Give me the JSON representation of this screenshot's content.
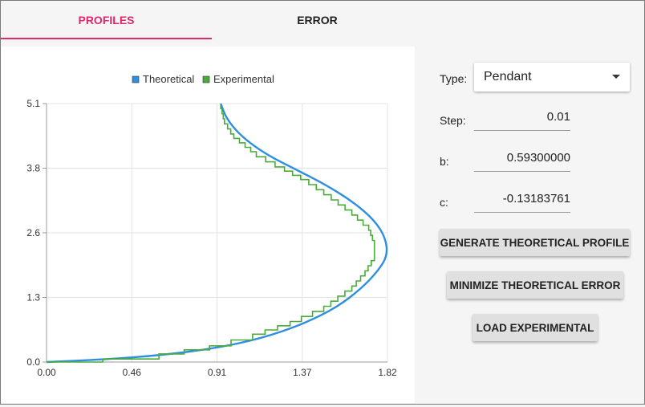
{
  "tabs": [
    {
      "label": "PROFILES",
      "active": true
    },
    {
      "label": "ERROR",
      "active": false
    }
  ],
  "colors": {
    "accent": "#e0276a",
    "theoretical": "#2e8fe0",
    "experimental": "#4aab3a"
  },
  "controls": {
    "type_label": "Type:",
    "type_value": "Pendant",
    "step_label": "Step:",
    "step_value": "0.01",
    "b_label": "b:",
    "b_value": "0.59300000",
    "c_label": "c:",
    "c_value": "-0.13183761",
    "generate_button": "GENERATE THEORETICAL PROFILE",
    "minimize_button": "MINIMIZE THEORETICAL ERROR",
    "load_button": "LOAD EXPERIMENTAL"
  },
  "chart_data": {
    "type": "line",
    "legend": [
      "Theoretical",
      "Experimental"
    ],
    "legend_position": "top",
    "grid": true,
    "xlim": [
      0,
      1.82
    ],
    "ylim": [
      0,
      5.1
    ],
    "x_ticks": [
      "0.00",
      "0.46",
      "0.91",
      "1.37",
      "1.82"
    ],
    "y_ticks": [
      "0.0",
      "1.3",
      "2.6",
      "3.8",
      "5.1"
    ],
    "series": [
      {
        "name": "Theoretical",
        "points": [
          [
            0,
            0
          ],
          [
            0.3,
            0.05
          ],
          [
            0.6,
            0.13
          ],
          [
            0.9,
            0.27
          ],
          [
            1.15,
            0.47
          ],
          [
            1.37,
            0.75
          ],
          [
            1.55,
            1.08
          ],
          [
            1.68,
            1.45
          ],
          [
            1.77,
            1.8
          ],
          [
            1.82,
            2.1
          ],
          [
            1.81,
            2.45
          ],
          [
            1.75,
            2.8
          ],
          [
            1.64,
            3.15
          ],
          [
            1.49,
            3.5
          ],
          [
            1.33,
            3.8
          ],
          [
            1.17,
            4.1
          ],
          [
            1.04,
            4.45
          ],
          [
            0.96,
            4.8
          ],
          [
            0.93,
            5.1
          ]
        ]
      },
      {
        "name": "Experimental",
        "points": [
          [
            0,
            0
          ],
          [
            0.3,
            0.06
          ],
          [
            0.6,
            0.16
          ],
          [
            0.87,
            0.32
          ],
          [
            1.1,
            0.55
          ],
          [
            1.3,
            0.8
          ],
          [
            1.48,
            1.1
          ],
          [
            1.63,
            1.5
          ],
          [
            1.7,
            1.8
          ],
          [
            1.75,
            2.1
          ],
          [
            1.75,
            2.4
          ],
          [
            1.72,
            2.7
          ],
          [
            1.63,
            3.0
          ],
          [
            1.52,
            3.3
          ],
          [
            1.4,
            3.6
          ],
          [
            1.27,
            3.85
          ],
          [
            1.12,
            4.15
          ],
          [
            1.0,
            4.5
          ],
          [
            0.95,
            4.8
          ],
          [
            0.93,
            5.1
          ]
        ]
      }
    ]
  }
}
